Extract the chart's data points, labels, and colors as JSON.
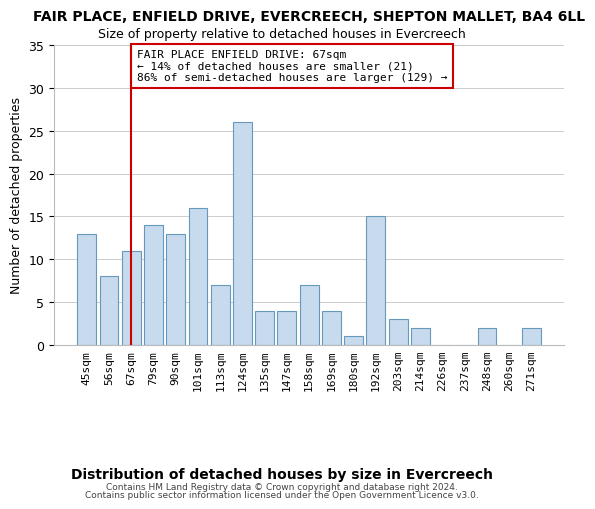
{
  "title": "FAIR PLACE, ENFIELD DRIVE, EVERCREECH, SHEPTON MALLET, BA4 6LL",
  "subtitle": "Size of property relative to detached houses in Evercreech",
  "xlabel": "Distribution of detached houses by size in Evercreech",
  "ylabel": "Number of detached properties",
  "bar_color": "#c8daed",
  "bar_edge_color": "#6699bb",
  "categories": [
    "45sqm",
    "56sqm",
    "67sqm",
    "79sqm",
    "90sqm",
    "101sqm",
    "113sqm",
    "124sqm",
    "135sqm",
    "147sqm",
    "158sqm",
    "169sqm",
    "180sqm",
    "192sqm",
    "203sqm",
    "214sqm",
    "226sqm",
    "237sqm",
    "248sqm",
    "260sqm",
    "271sqm"
  ],
  "values": [
    13,
    8,
    11,
    14,
    13,
    16,
    7,
    26,
    4,
    4,
    7,
    4,
    1,
    15,
    3,
    2,
    0,
    0,
    2,
    0,
    2
  ],
  "ylim": [
    0,
    35
  ],
  "yticks": [
    0,
    5,
    10,
    15,
    20,
    25,
    30,
    35
  ],
  "vline_x_index": 2,
  "vline_color": "#cc0000",
  "annotation_text": "FAIR PLACE ENFIELD DRIVE: 67sqm\n← 14% of detached houses are smaller (21)\n86% of semi-detached houses are larger (129) →",
  "annotation_box_edge_color": "#cc0000",
  "footer_line1": "Contains HM Land Registry data © Crown copyright and database right 2024.",
  "footer_line2": "Contains public sector information licensed under the Open Government Licence v3.0.",
  "background_color": "#ffffff",
  "grid_color": "#cccccc"
}
